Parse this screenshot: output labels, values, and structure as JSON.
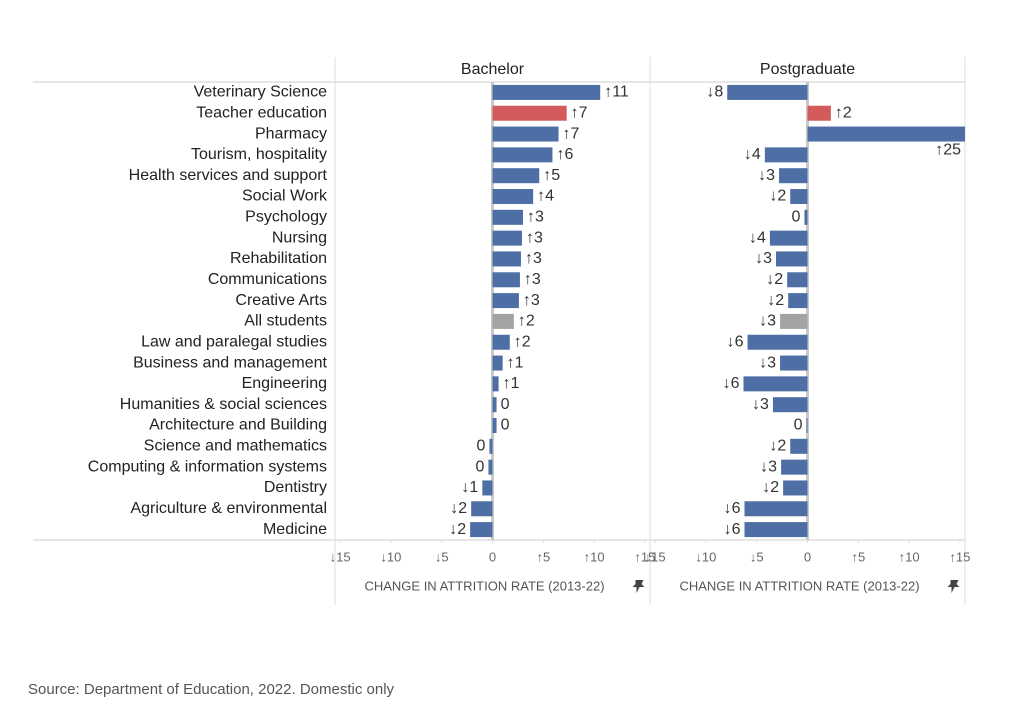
{
  "chart_data": {
    "type": "bar",
    "orientation": "horizontal",
    "categories": [
      "Veterinary Science",
      "Teacher education",
      "Pharmacy",
      "Tourism, hospitality",
      "Health services and support",
      "Social Work",
      "Psychology",
      "Nursing",
      "Rehabilitation",
      "Communications",
      "Creative Arts",
      "All students",
      "Law and paralegal studies",
      "Business and management",
      "Engineering",
      "Humanities & social sciences",
      "Architecture and Building",
      "Science and mathematics",
      "Computing & information systems",
      "Dentistry",
      "Agriculture & environmental",
      "Medicine"
    ],
    "series": [
      {
        "name": "Bachelor",
        "colors": [
          "#4e6fa6",
          "#d45b5b",
          "#4e6fa6",
          "#4e6fa6",
          "#4e6fa6",
          "#4e6fa6",
          "#4e6fa6",
          "#4e6fa6",
          "#4e6fa6",
          "#4e6fa6",
          "#4e6fa6",
          "#a3a3a6",
          "#4e6fa6",
          "#4e6fa6",
          "#4e6fa6",
          "#4e6fa6",
          "#4e6fa6",
          "#4e6fa6",
          "#4e6fa6",
          "#4e6fa6",
          "#4e6fa6",
          "#4e6fa6"
        ],
        "values": [
          10.6,
          7.3,
          6.5,
          5.9,
          4.6,
          4.0,
          3.0,
          2.9,
          2.8,
          2.7,
          2.6,
          2.1,
          1.7,
          1.0,
          0.6,
          0.4,
          0.4,
          -0.3,
          -0.4,
          -1.0,
          -2.1,
          -2.2
        ],
        "value_labels": [
          "↑11",
          "↑7",
          "↑7",
          "↑6",
          "↑5",
          "↑4",
          "↑3",
          "↑3",
          "↑3",
          "↑3",
          "↑3",
          "↑2",
          "↑2",
          "↑1",
          "↑1",
          "0",
          "0",
          "0",
          "0",
          "↓1",
          "↓2",
          "↓2"
        ]
      },
      {
        "name": "Postgraduate",
        "colors": [
          "#4e6fa6",
          "#d45b5b",
          "#4e6fa6",
          "#4e6fa6",
          "#4e6fa6",
          "#4e6fa6",
          "#4e6fa6",
          "#4e6fa6",
          "#4e6fa6",
          "#4e6fa6",
          "#4e6fa6",
          "#a3a3a6",
          "#4e6fa6",
          "#4e6fa6",
          "#4e6fa6",
          "#4e6fa6",
          "#4e6fa6",
          "#4e6fa6",
          "#4e6fa6",
          "#4e6fa6",
          "#4e6fa6",
          "#4e6fa6"
        ],
        "values": [
          -7.9,
          2.3,
          25,
          -4.2,
          -2.8,
          -1.7,
          -0.3,
          -3.7,
          -3.1,
          -2.0,
          -1.9,
          -2.7,
          -5.9,
          -2.7,
          -6.3,
          -3.4,
          -0.1,
          -1.7,
          -2.6,
          -2.4,
          -6.2,
          -6.2
        ],
        "value_labels": [
          "↓8",
          "↑2",
          "↑25",
          "↓4",
          "↓3",
          "↓2",
          "0",
          "↓4",
          "↓3",
          "↓2",
          "↓2",
          "↓3",
          "↓6",
          "↓3",
          "↓6",
          "↓3",
          "0",
          "↓2",
          "↓3",
          "↓2",
          "↓6",
          "↓6"
        ]
      }
    ],
    "xlim": [
      -15.5,
      15.5
    ],
    "xticks": [
      {
        "value": -15,
        "label": "↓15"
      },
      {
        "value": -10,
        "label": "↓10"
      },
      {
        "value": -5,
        "label": "↓5"
      },
      0,
      {
        "value": 5,
        "label": "↑5"
      },
      {
        "value": 10,
        "label": "↑10"
      },
      {
        "value": 15,
        "label": "↑15"
      }
    ],
    "xlabel": "CHANGE IN ATTRITION RATE (2013-22)",
    "caption": "Source: Department of Education, 2022. Domestic only"
  }
}
